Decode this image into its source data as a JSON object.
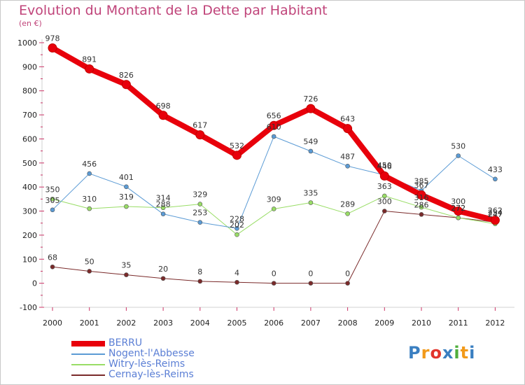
{
  "title": "Evolution du Montant de la Dette par Habitant",
  "unit": "(en €)",
  "logo": {
    "text": "Proxiti",
    "colors": [
      "#3a7fc1",
      "#f29a1a",
      "#e2342c",
      "#3a7fc1",
      "#4fae3c",
      "#f29a1a",
      "#3a7fc1"
    ]
  },
  "chart_data": {
    "type": "line",
    "title": "Evolution du Montant de la Dette par Habitant",
    "ylabel": "(en €)",
    "xlabel": "",
    "x": [
      "2000",
      "2001",
      "2002",
      "2003",
      "2004",
      "2005",
      "2006",
      "2007",
      "2008",
      "2009",
      "2010",
      "2011",
      "2012"
    ],
    "ylim": [
      -100,
      1000
    ],
    "yticks": [
      "-100",
      "0",
      "100",
      "200",
      "300",
      "400",
      "500",
      "600",
      "700",
      "800",
      "900",
      "1000"
    ],
    "grid": false,
    "legend": "bottom-left",
    "series": [
      {
        "name": "BERRU",
        "color": "#e8000b",
        "width": 8,
        "values": [
          978,
          891,
          826,
          698,
          617,
          532,
          656,
          726,
          643,
          446,
          367,
          300,
          262
        ]
      },
      {
        "name": "Nogent-l'Abbesse",
        "color": "#5b9bd5",
        "width": 1,
        "values": [
          305,
          456,
          401,
          288,
          253,
          228,
          610,
          549,
          487,
          450,
          385,
          530,
          433
        ]
      },
      {
        "name": "Witry-lès-Reims",
        "color": "#99dd66",
        "width": 1,
        "values": [
          350,
          310,
          319,
          314,
          329,
          202,
          309,
          335,
          289,
          363,
          316,
          272,
          247
        ]
      },
      {
        "name": "Cernay-lès-Reims",
        "color": "#7a2a2a",
        "width": 1,
        "values": [
          68,
          50,
          35,
          20,
          8,
          4,
          0,
          0,
          0,
          300,
          286,
          272,
          254
        ]
      }
    ],
    "data_labels": [
      {
        "series": 0,
        "texts": [
          "978",
          "891",
          "826",
          "698",
          "617",
          "532",
          "656",
          "726",
          "643",
          "446",
          "367",
          "300",
          "262"
        ]
      },
      {
        "series": 1,
        "texts": [
          "305",
          "456",
          "401",
          "288",
          "253",
          "228",
          "610",
          "549",
          "487",
          "450",
          "385",
          "530",
          "433"
        ]
      },
      {
        "series": 2,
        "texts": [
          "350",
          "310",
          "319",
          "314",
          "329",
          "202",
          "309",
          "335",
          "289",
          "363",
          "316",
          "272",
          "247"
        ]
      },
      {
        "series": 3,
        "texts": [
          "68",
          "50",
          "35",
          "20",
          "8",
          "4",
          "0",
          "0",
          "0",
          "300",
          "286",
          "272",
          "254"
        ]
      }
    ]
  }
}
